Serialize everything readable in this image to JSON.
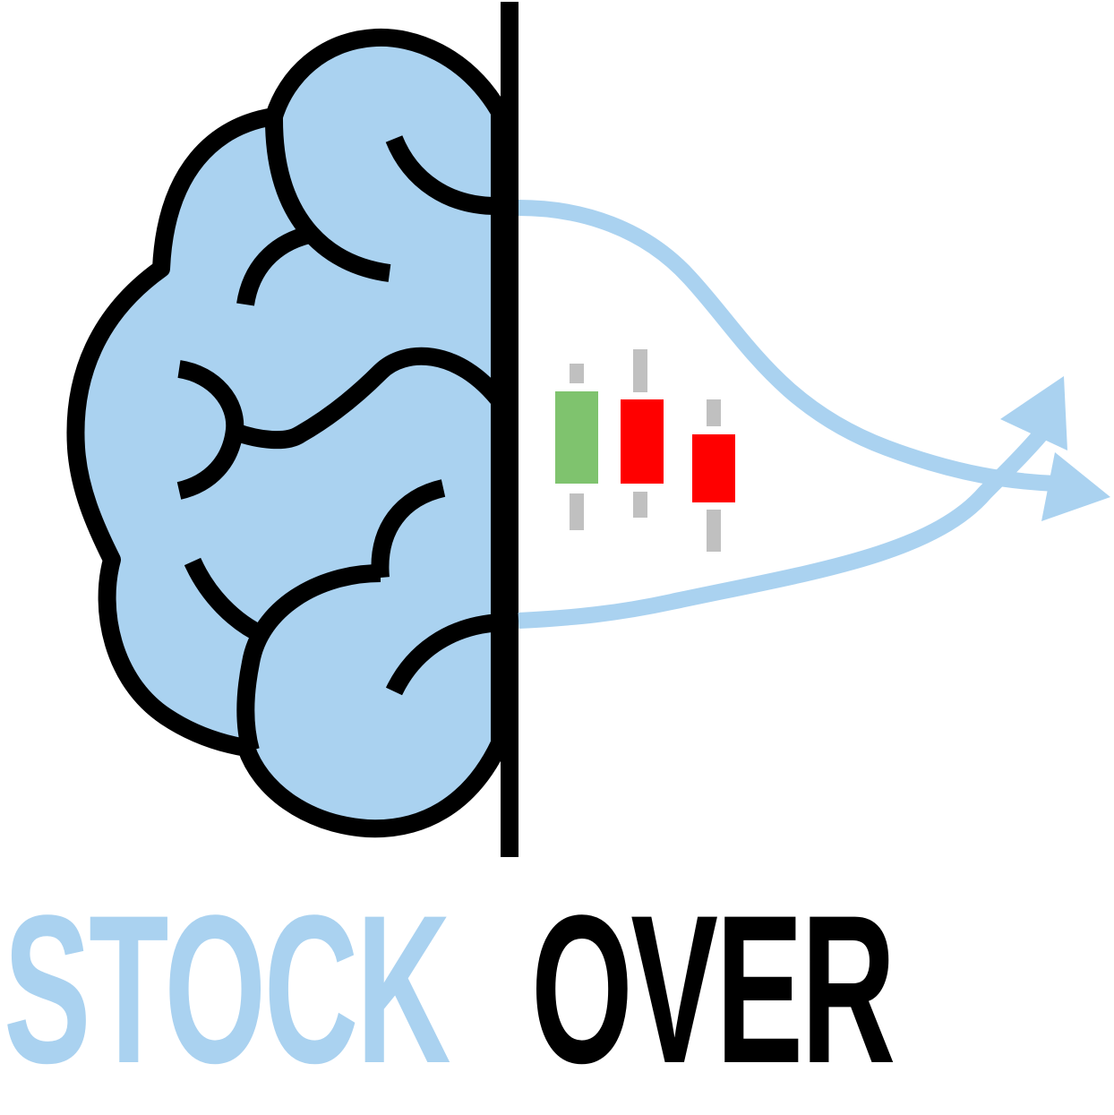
{
  "wordmark": {
    "word1": "STOCK",
    "word2": "OVER"
  },
  "colors": {
    "brain_fill": "#aad2f0",
    "outline": "#000000",
    "arrow": "#aad2f0",
    "candle_up": "#7fc36e",
    "candle_down": "#ff0000",
    "wick": "#c0c0c0",
    "word1": "#aad2f0",
    "word2": "#000000"
  },
  "icons": [
    "brain-icon",
    "candlestick-icon",
    "arrow-icon"
  ]
}
